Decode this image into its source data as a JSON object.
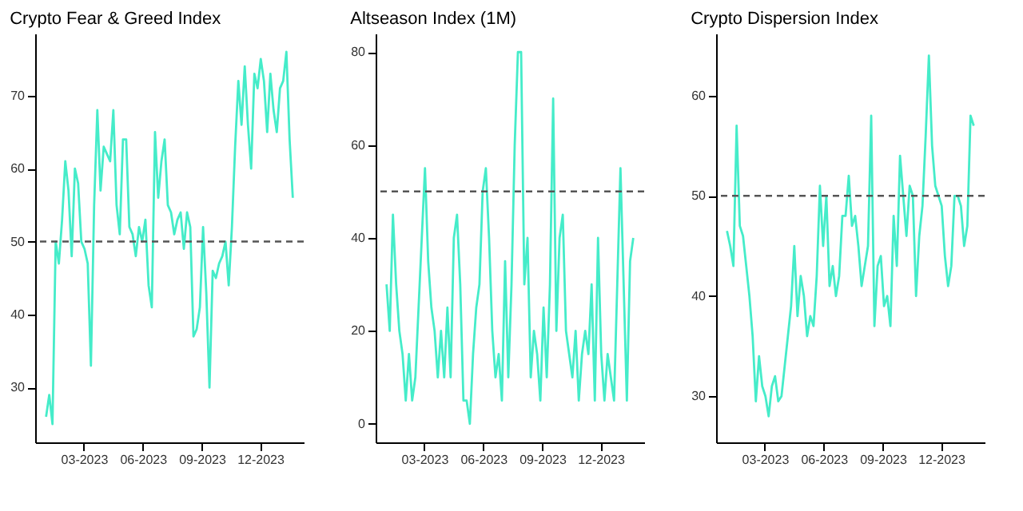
{
  "chart_data": [
    {
      "type": "line",
      "title": "Crypto Fear & Greed Index",
      "x": [
        "2023-01-01",
        "2023-01-06",
        "2023-01-11",
        "2023-01-16",
        "2023-01-21",
        "2023-01-26",
        "2023-01-31",
        "2023-02-05",
        "2023-02-10",
        "2023-02-15",
        "2023-02-20",
        "2023-02-25",
        "2023-03-02",
        "2023-03-07",
        "2023-03-12",
        "2023-03-17",
        "2023-03-22",
        "2023-03-27",
        "2023-04-01",
        "2023-04-06",
        "2023-04-11",
        "2023-04-16",
        "2023-04-21",
        "2023-04-26",
        "2023-05-01",
        "2023-05-06",
        "2023-05-11",
        "2023-05-16",
        "2023-05-21",
        "2023-05-26",
        "2023-05-31",
        "2023-06-05",
        "2023-06-10",
        "2023-06-15",
        "2023-06-20",
        "2023-06-25",
        "2023-06-30",
        "2023-07-05",
        "2023-07-10",
        "2023-07-15",
        "2023-07-20",
        "2023-07-25",
        "2023-07-30",
        "2023-08-04",
        "2023-08-09",
        "2023-08-14",
        "2023-08-19",
        "2023-08-24",
        "2023-08-29",
        "2023-09-03",
        "2023-09-08",
        "2023-09-13",
        "2023-09-18",
        "2023-09-23",
        "2023-09-28",
        "2023-10-03",
        "2023-10-08",
        "2023-10-13",
        "2023-10-18",
        "2023-10-23",
        "2023-10-28",
        "2023-11-02",
        "2023-11-07",
        "2023-11-12",
        "2023-11-17",
        "2023-11-22",
        "2023-11-27",
        "2023-12-02",
        "2023-12-07",
        "2023-12-12",
        "2023-12-17",
        "2023-12-22",
        "2023-12-27",
        "2024-01-01",
        "2024-01-06",
        "2024-01-11",
        "2024-01-16",
        "2024-01-21"
      ],
      "series": [
        {
          "color": "#45ecc9",
          "values": [
            26,
            29,
            25,
            50,
            47,
            53,
            61,
            57,
            48,
            60,
            58,
            50,
            49,
            47,
            33,
            55,
            68,
            57,
            63,
            62,
            61,
            68,
            55,
            51,
            64,
            64,
            52,
            51,
            48,
            52,
            50,
            53,
            44,
            41,
            65,
            56,
            61,
            64,
            55,
            54,
            51,
            53,
            54,
            49,
            54,
            52,
            37,
            38,
            41,
            52,
            43,
            30,
            46,
            45,
            47,
            48,
            50,
            44,
            52,
            63,
            72,
            66,
            74,
            66,
            60,
            73,
            71,
            75,
            72,
            65,
            73,
            68,
            65,
            71,
            72,
            76,
            64,
            56
          ]
        }
      ],
      "xlim": [
        "2022-12-15",
        "2024-02-07"
      ],
      "ylim": [
        22.5,
        78.5
      ],
      "yticks": [
        30,
        40,
        50,
        60,
        70
      ],
      "xticks": [
        {
          "value": "2023-03-01",
          "label": "03-2023"
        },
        {
          "value": "2023-06-01",
          "label": "06-2023"
        },
        {
          "value": "2023-09-01",
          "label": "09-2023"
        },
        {
          "value": "2023-12-01",
          "label": "12-2023"
        }
      ],
      "ref_lines": [
        {
          "axis": "y",
          "value": 50,
          "color": "#555555",
          "line_style": "dashed"
        }
      ],
      "grid": false,
      "line_style": "solid",
      "marker": "none"
    },
    {
      "type": "line",
      "title": "Altseason Index (1M)",
      "x": [
        "2023-01-01",
        "2023-01-06",
        "2023-01-11",
        "2023-01-16",
        "2023-01-21",
        "2023-01-26",
        "2023-01-31",
        "2023-02-05",
        "2023-02-10",
        "2023-02-15",
        "2023-02-20",
        "2023-02-25",
        "2023-03-02",
        "2023-03-07",
        "2023-03-12",
        "2023-03-17",
        "2023-03-22",
        "2023-03-27",
        "2023-04-01",
        "2023-04-06",
        "2023-04-11",
        "2023-04-16",
        "2023-04-21",
        "2023-04-26",
        "2023-05-01",
        "2023-05-06",
        "2023-05-11",
        "2023-05-16",
        "2023-05-21",
        "2023-05-26",
        "2023-05-31",
        "2023-06-05",
        "2023-06-10",
        "2023-06-15",
        "2023-06-20",
        "2023-06-25",
        "2023-06-30",
        "2023-07-05",
        "2023-07-10",
        "2023-07-15",
        "2023-07-20",
        "2023-07-25",
        "2023-07-30",
        "2023-08-04",
        "2023-08-09",
        "2023-08-14",
        "2023-08-19",
        "2023-08-24",
        "2023-08-29",
        "2023-09-03",
        "2023-09-08",
        "2023-09-13",
        "2023-09-18",
        "2023-09-23",
        "2023-09-28",
        "2023-10-03",
        "2023-10-08",
        "2023-10-13",
        "2023-10-18",
        "2023-10-23",
        "2023-10-28",
        "2023-11-02",
        "2023-11-07",
        "2023-11-12",
        "2023-11-17",
        "2023-11-22",
        "2023-11-27",
        "2023-12-02",
        "2023-12-07",
        "2023-12-12",
        "2023-12-17",
        "2023-12-22",
        "2023-12-27",
        "2024-01-01",
        "2024-01-06",
        "2024-01-11",
        "2024-01-16",
        "2024-01-21"
      ],
      "series": [
        {
          "color": "#45ecc9",
          "values": [
            30,
            20,
            45,
            30,
            20,
            15,
            5,
            15,
            5,
            10,
            25,
            40,
            55,
            35,
            25,
            20,
            10,
            20,
            10,
            25,
            10,
            40,
            45,
            30,
            5,
            5,
            0,
            15,
            25,
            30,
            50,
            55,
            40,
            20,
            10,
            15,
            5,
            35,
            10,
            30,
            60,
            80,
            80,
            30,
            40,
            10,
            20,
            15,
            5,
            25,
            10,
            30,
            70,
            20,
            40,
            45,
            20,
            15,
            10,
            20,
            5,
            15,
            20,
            15,
            30,
            5,
            40,
            15,
            5,
            15,
            10,
            5,
            30,
            55,
            30,
            5,
            35,
            40
          ]
        }
      ],
      "xlim": [
        "2022-12-15",
        "2024-02-07"
      ],
      "ylim": [
        -4,
        84
      ],
      "yticks": [
        0,
        20,
        40,
        60,
        80
      ],
      "xticks": [
        {
          "value": "2023-03-01",
          "label": "03-2023"
        },
        {
          "value": "2023-06-01",
          "label": "06-2023"
        },
        {
          "value": "2023-09-01",
          "label": "09-2023"
        },
        {
          "value": "2023-12-01",
          "label": "12-2023"
        }
      ],
      "ref_lines": [
        {
          "axis": "y",
          "value": 50,
          "color": "#555555",
          "line_style": "dashed"
        }
      ],
      "grid": false,
      "line_style": "solid",
      "marker": "none"
    },
    {
      "type": "line",
      "title": "Crypto Dispersion Index",
      "x": [
        "2023-01-01",
        "2023-01-06",
        "2023-01-11",
        "2023-01-16",
        "2023-01-21",
        "2023-01-26",
        "2023-01-31",
        "2023-02-05",
        "2023-02-10",
        "2023-02-15",
        "2023-02-20",
        "2023-02-25",
        "2023-03-02",
        "2023-03-07",
        "2023-03-12",
        "2023-03-17",
        "2023-03-22",
        "2023-03-27",
        "2023-04-01",
        "2023-04-06",
        "2023-04-11",
        "2023-04-16",
        "2023-04-21",
        "2023-04-26",
        "2023-05-01",
        "2023-05-06",
        "2023-05-11",
        "2023-05-16",
        "2023-05-21",
        "2023-05-26",
        "2023-05-31",
        "2023-06-05",
        "2023-06-10",
        "2023-06-15",
        "2023-06-20",
        "2023-06-25",
        "2023-06-30",
        "2023-07-05",
        "2023-07-10",
        "2023-07-15",
        "2023-07-20",
        "2023-07-25",
        "2023-07-30",
        "2023-08-04",
        "2023-08-09",
        "2023-08-14",
        "2023-08-19",
        "2023-08-24",
        "2023-08-29",
        "2023-09-03",
        "2023-09-08",
        "2023-09-13",
        "2023-09-18",
        "2023-09-23",
        "2023-09-28",
        "2023-10-03",
        "2023-10-08",
        "2023-10-13",
        "2023-10-18",
        "2023-10-23",
        "2023-10-28",
        "2023-11-02",
        "2023-11-07",
        "2023-11-12",
        "2023-11-17",
        "2023-11-22",
        "2023-11-27",
        "2023-12-02",
        "2023-12-07",
        "2023-12-12",
        "2023-12-17",
        "2023-12-22",
        "2023-12-27",
        "2024-01-01",
        "2024-01-06",
        "2024-01-11",
        "2024-01-16",
        "2024-01-21"
      ],
      "series": [
        {
          "color": "#45ecc9",
          "values": [
            46.5,
            45,
            43,
            57,
            47,
            46,
            43,
            40,
            36,
            29.5,
            34,
            31,
            30,
            28,
            31,
            32,
            29.5,
            30,
            33,
            36,
            39,
            45,
            38,
            42,
            40,
            36,
            38,
            37,
            42,
            51,
            45,
            50,
            41,
            43,
            40,
            42,
            48,
            48,
            52,
            47,
            48,
            45,
            41,
            43,
            45,
            58,
            37,
            43,
            44,
            39,
            40,
            37,
            48,
            43,
            54,
            50,
            46,
            51,
            50,
            40,
            46,
            49,
            56,
            64,
            55,
            51,
            50,
            49,
            44,
            41,
            43,
            50,
            50,
            49,
            45,
            47,
            58,
            57
          ]
        }
      ],
      "xlim": [
        "2022-12-15",
        "2024-02-07"
      ],
      "ylim": [
        25.4,
        66.2
      ],
      "yticks": [
        30,
        40,
        50,
        60
      ],
      "xticks": [
        {
          "value": "2023-03-01",
          "label": "03-2023"
        },
        {
          "value": "2023-06-01",
          "label": "06-2023"
        },
        {
          "value": "2023-09-01",
          "label": "09-2023"
        },
        {
          "value": "2023-12-01",
          "label": "12-2023"
        }
      ],
      "ref_lines": [
        {
          "axis": "y",
          "value": 50,
          "color": "#555555",
          "line_style": "dashed"
        }
      ],
      "grid": false,
      "line_style": "solid",
      "marker": "none"
    }
  ]
}
